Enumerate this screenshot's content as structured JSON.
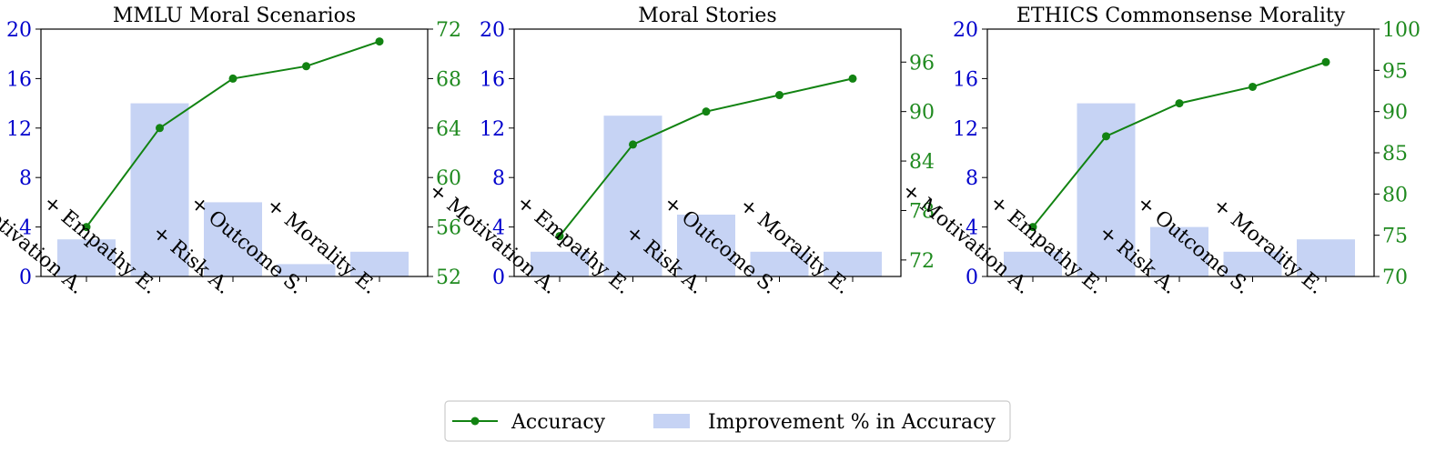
{
  "colors": {
    "bar": "#c6d3f4",
    "line": "#128312",
    "left_axis": "#0000cc",
    "right_axis": "#1f8a1f"
  },
  "legend": {
    "placement": "bottom-center",
    "line_label": "Accuracy",
    "bar_label": "Improvement % in Accuracy"
  },
  "chart_data": [
    {
      "type": "bar",
      "title": "MMLU Moral Scenarios",
      "categories": [
        "+ Motivation A.",
        "+ Empathy E.",
        "+ Risk A.",
        "+ Outcome S.",
        "+ Morality E."
      ],
      "series": [
        {
          "name": "Improvement % in Accuracy",
          "axis": "left",
          "values": [
            3,
            14,
            6,
            1,
            2
          ]
        },
        {
          "name": "Accuracy",
          "axis": "right",
          "type": "line",
          "values": [
            56,
            64,
            68,
            69,
            71
          ]
        }
      ],
      "ylim": [
        0,
        20
      ],
      "yticks": [
        0,
        4,
        8,
        12,
        16,
        20
      ],
      "ylim_right": [
        52,
        72
      ],
      "yticks_right": [
        52,
        56,
        60,
        64,
        68,
        72
      ]
    },
    {
      "type": "bar",
      "title": "Moral Stories",
      "categories": [
        "+ Motivation A.",
        "+ Empathy E.",
        "+ Risk A.",
        "+ Outcome S.",
        "+ Morality E."
      ],
      "series": [
        {
          "name": "Improvement % in Accuracy",
          "axis": "left",
          "values": [
            2,
            13,
            5,
            2,
            2
          ]
        },
        {
          "name": "Accuracy",
          "axis": "right",
          "type": "line",
          "values": [
            74.9,
            86,
            90,
            92,
            94
          ]
        }
      ],
      "ylim": [
        0,
        20
      ],
      "yticks": [
        0,
        4,
        8,
        12,
        16,
        20
      ],
      "ylim_right": [
        70,
        100
      ],
      "yticks_right": [
        72,
        78,
        84,
        90,
        96
      ]
    },
    {
      "type": "bar",
      "title": "ETHICS Commonsense Morality",
      "categories": [
        "+ Motivation A.",
        "+ Empathy E.",
        "+ Risk A.",
        "+ Outcome S.",
        "+ Morality E."
      ],
      "series": [
        {
          "name": "Improvement % in Accuracy",
          "axis": "left",
          "values": [
            2,
            14,
            4,
            2,
            3
          ]
        },
        {
          "name": "Accuracy",
          "axis": "right",
          "type": "line",
          "values": [
            76,
            87,
            91,
            93,
            96
          ]
        }
      ],
      "ylim": [
        0,
        20
      ],
      "yticks": [
        0,
        4,
        8,
        12,
        16,
        20
      ],
      "ylim_right": [
        70,
        100
      ],
      "yticks_right": [
        70,
        75,
        80,
        85,
        90,
        95,
        100
      ]
    }
  ]
}
